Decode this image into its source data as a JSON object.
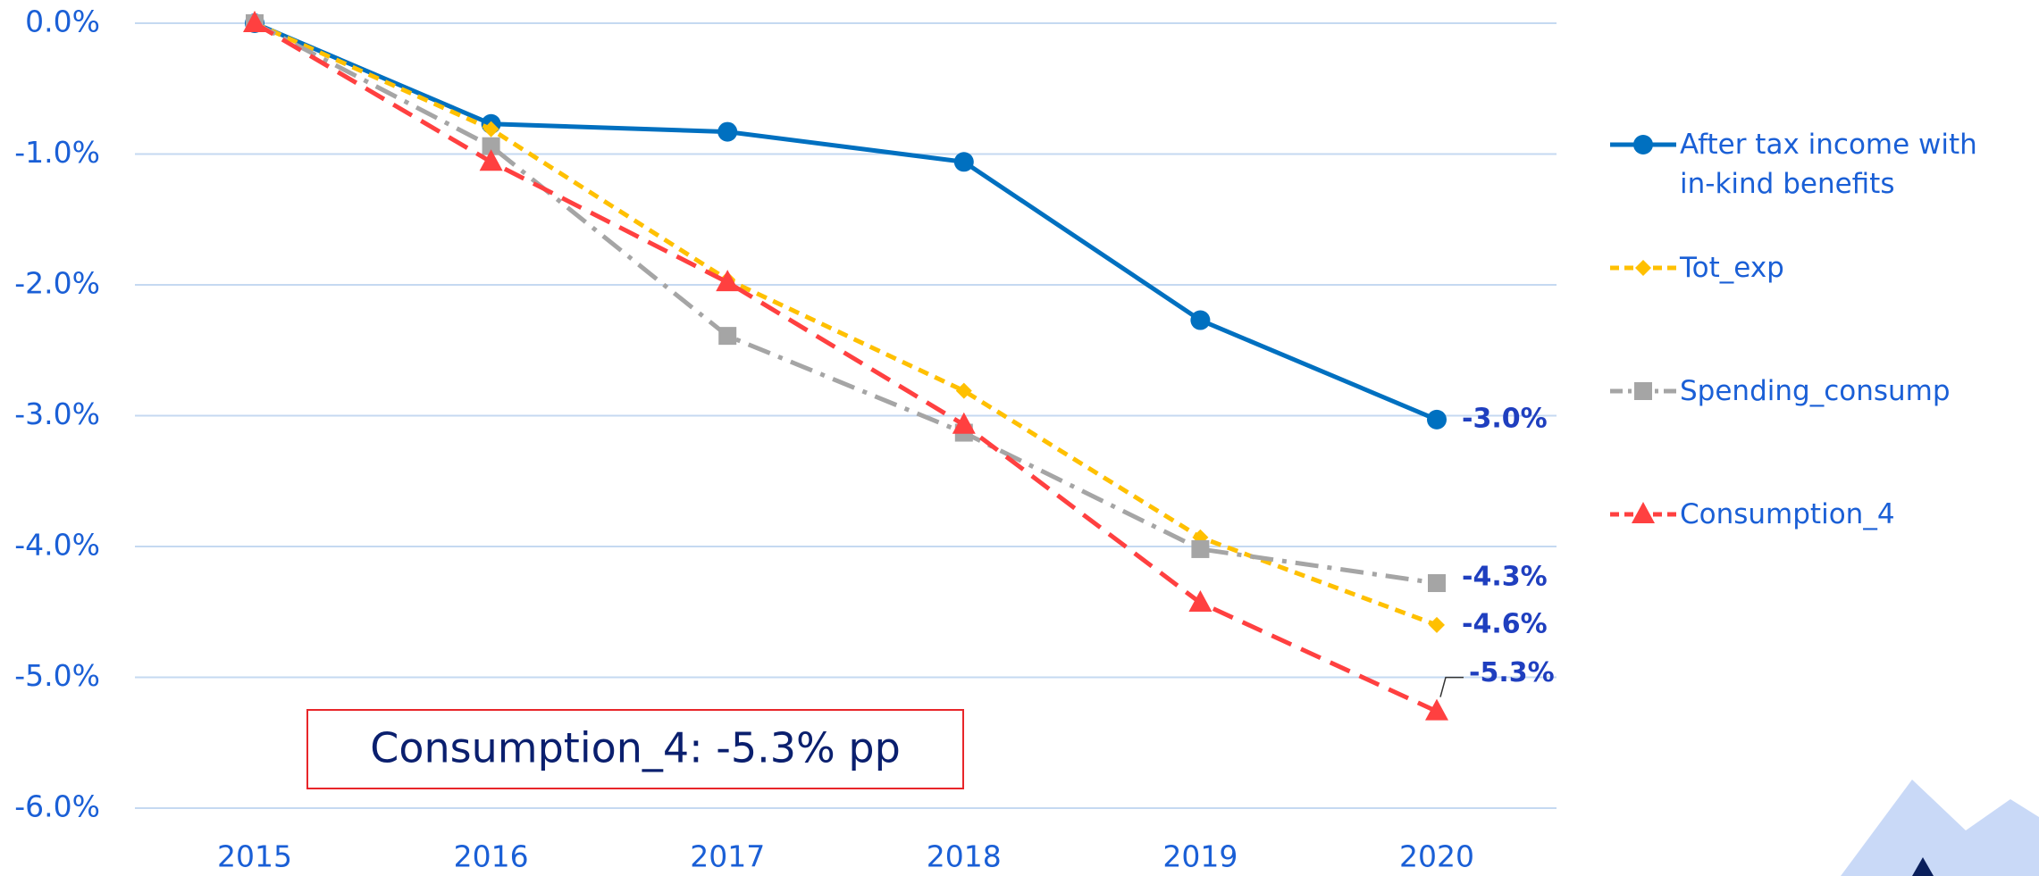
{
  "chart_data": {
    "type": "line",
    "categories": [
      "2015",
      "2016",
      "2017",
      "2018",
      "2019",
      "2020"
    ],
    "series": [
      {
        "name": "After tax income with in-kind benefits",
        "color": "#0070c0",
        "marker": "circle",
        "dash": "none",
        "values": [
          0,
          -0.77,
          -0.83,
          -1.06,
          -2.27,
          -3.03
        ],
        "value_labels": [
          null,
          null,
          null,
          null,
          null,
          "-3.0%"
        ]
      },
      {
        "name": "Tot_exp",
        "color": "#ffc000",
        "marker": "diamond",
        "dash": "short",
        "values": [
          0,
          -0.81,
          -1.96,
          -2.81,
          -3.93,
          -4.6
        ],
        "value_labels": [
          null,
          null,
          null,
          null,
          null,
          "-4.6%"
        ]
      },
      {
        "name": "Spending_consump",
        "color": "#a5a5a5",
        "marker": "square",
        "dash": "dashdot",
        "values": [
          0,
          -0.94,
          -2.39,
          -3.13,
          -4.02,
          -4.28
        ],
        "value_labels": [
          null,
          null,
          null,
          null,
          null,
          "-4.3%"
        ]
      },
      {
        "name": "Consumption_4",
        "color": "#ff4040",
        "marker": "triangle",
        "dash": "long",
        "values": [
          0,
          -1.06,
          -1.98,
          -3.07,
          -4.43,
          -5.26
        ],
        "value_labels": [
          null,
          null,
          null,
          null,
          null,
          "-5.3%"
        ]
      }
    ],
    "ylim": [
      -6,
      0
    ],
    "yticks": [
      {
        "value": 0,
        "label": "0.0%"
      },
      {
        "value": -1,
        "label": "-1.0%"
      },
      {
        "value": -2,
        "label": "-2.0%"
      },
      {
        "value": -3,
        "label": "-3.0%"
      },
      {
        "value": -4,
        "label": "-4.0%"
      },
      {
        "value": -5,
        "label": "-5.0%"
      },
      {
        "value": -6,
        "label": "-6.0%"
      }
    ],
    "grid": true,
    "legend": "right",
    "annotation": "Consumption_4: -5.3% pp"
  }
}
